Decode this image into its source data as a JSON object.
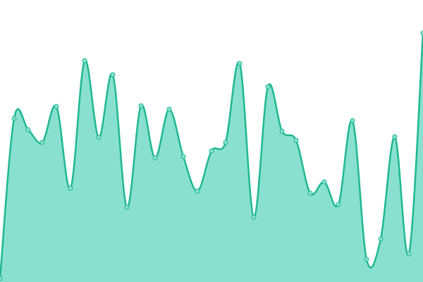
{
  "chart_data": {
    "type": "area",
    "values": [
      5,
      232,
      216,
      198,
      249,
      133,
      314,
      205,
      294,
      106,
      250,
      176,
      245,
      178,
      129,
      186,
      198,
      310,
      92,
      277,
      214,
      201,
      126,
      142,
      110,
      229,
      32,
      61,
      206,
      40,
      353
    ],
    "ylim": [
      0,
      400
    ],
    "color": "#1fb891",
    "fill": "#89e0cf"
  }
}
